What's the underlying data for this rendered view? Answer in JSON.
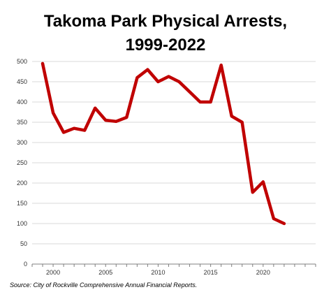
{
  "chart_data": {
    "type": "line",
    "title_lines": [
      "Takoma Park Physical Arrests,",
      "1999-2022"
    ],
    "x": [
      1999,
      2000,
      2001,
      2002,
      2003,
      2004,
      2005,
      2006,
      2007,
      2008,
      2009,
      2010,
      2011,
      2012,
      2013,
      2014,
      2015,
      2016,
      2017,
      2018,
      2019,
      2020,
      2021,
      2022
    ],
    "series": [
      {
        "values": [
          495,
          373,
          325,
          335,
          330,
          385,
          355,
          352,
          362,
          460,
          480,
          450,
          463,
          450,
          425,
          400,
          400,
          491,
          365,
          350,
          177,
          203,
          112,
          100
        ],
        "color": "#c00000"
      }
    ],
    "xlim": [
      1998,
      2025
    ],
    "ylim": [
      0,
      500
    ],
    "y_ticks": [
      0,
      50,
      100,
      150,
      200,
      250,
      300,
      350,
      400,
      450,
      500
    ],
    "x_ticks": [
      2000,
      2005,
      2010,
      2015,
      2020
    ],
    "grid": "horizontal",
    "xlabel": "",
    "ylabel": ""
  },
  "source": "Source: City of Rockville Comprehensive Annual Financial Reports."
}
